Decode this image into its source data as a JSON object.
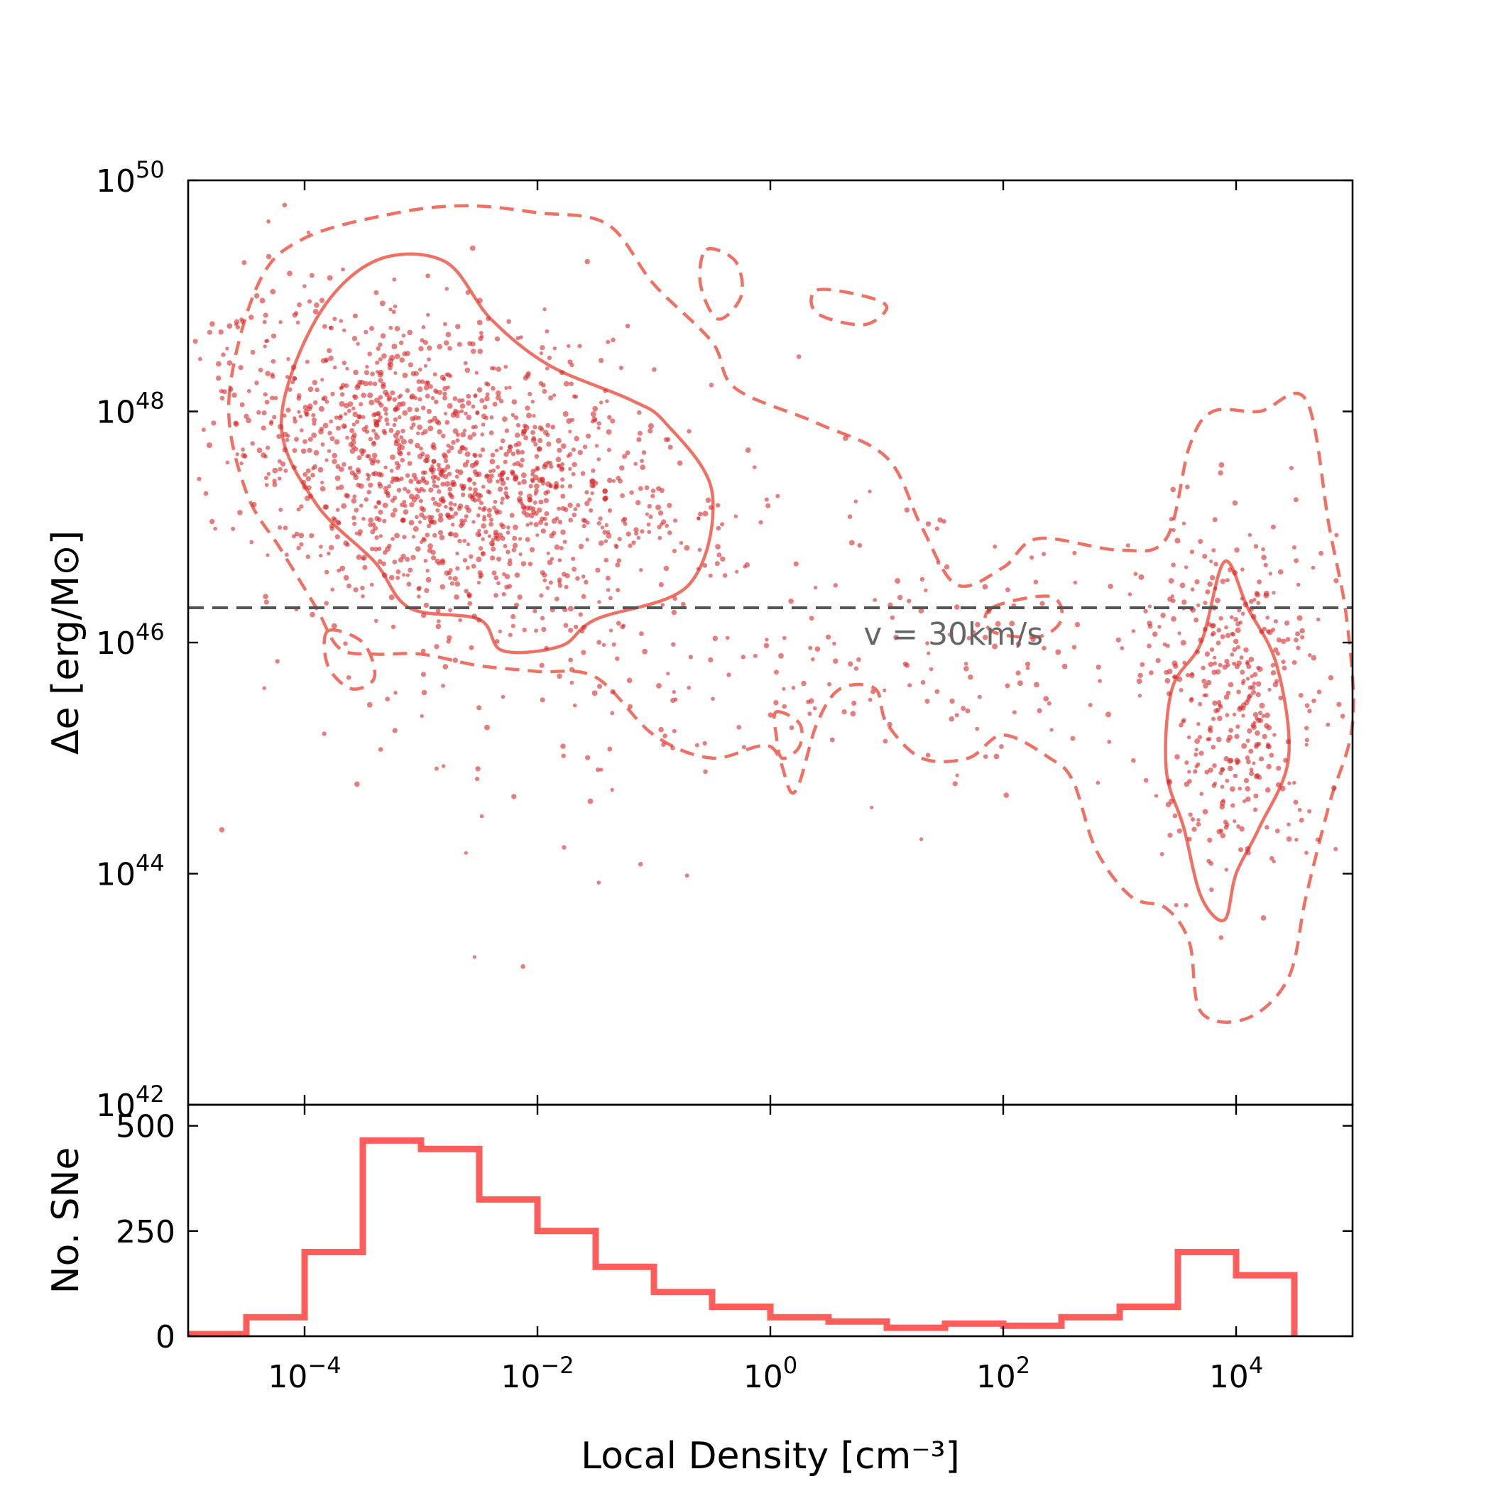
{
  "chart_data": [
    {
      "type": "scatter",
      "xscale": "log",
      "yscale": "log",
      "xlim": [
        1e-05,
        100000.0
      ],
      "ylim": [
        1e+42,
        1e+50
      ],
      "xticks": [
        {
          "value": -4,
          "base": "10",
          "exp": "−4"
        },
        {
          "value": -2,
          "base": "10",
          "exp": "−2"
        },
        {
          "value": 0,
          "base": "10",
          "exp": "0"
        },
        {
          "value": 2,
          "base": "10",
          "exp": "2"
        },
        {
          "value": 4,
          "base": "10",
          "exp": "4"
        }
      ],
      "yticks": [
        {
          "value": 42,
          "base": "10",
          "exp": "42"
        },
        {
          "value": 44,
          "base": "10",
          "exp": "44"
        },
        {
          "value": 46,
          "base": "10",
          "exp": "46"
        },
        {
          "value": 48,
          "base": "10",
          "exp": "48"
        },
        {
          "value": 50,
          "base": "10",
          "exp": "50"
        }
      ],
      "ylabel": "Δe [erg/M⊙]",
      "reference_line": {
        "y": 2e+46,
        "label": "v = 30km/s"
      },
      "point_color": "#d62728",
      "contour_color": "#f07064",
      "clusters": [
        {
          "x_log_mean": -2.9,
          "y_log_mean": 47.55,
          "sigma_x": 0.95,
          "sigma_y": 0.62,
          "tilt": -0.35,
          "count": 1350
        },
        {
          "x_log_mean": 4.0,
          "y_log_mean": 45.5,
          "sigma_x": 0.38,
          "sigma_y": 0.75,
          "tilt": 0.0,
          "count": 380
        },
        {
          "x_log_mean": 1.5,
          "y_log_mean": 45.9,
          "sigma_x": 1.6,
          "sigma_y": 0.55,
          "tilt": 0.0,
          "count": 180
        },
        {
          "x_log_mean": -1.5,
          "y_log_mean": 46.0,
          "sigma_x": 1.5,
          "sigma_y": 1.0,
          "tilt": 0.0,
          "count": 150
        }
      ],
      "outer_contour_log": [
        [
          -4.65,
          48.1
        ],
        [
          -4.4,
          49.1
        ],
        [
          -4.0,
          49.5
        ],
        [
          -3.2,
          49.72
        ],
        [
          -2.6,
          49.78
        ],
        [
          -2.0,
          49.72
        ],
        [
          -1.4,
          49.62
        ],
        [
          -1.0,
          49.1
        ],
        [
          -0.5,
          48.6
        ],
        [
          -0.3,
          48.2
        ],
        [
          0.4,
          47.9
        ],
        [
          1.0,
          47.6
        ],
        [
          1.3,
          47.0
        ],
        [
          1.6,
          46.5
        ],
        [
          2.0,
          46.65
        ],
        [
          2.3,
          46.9
        ],
        [
          3.0,
          46.8
        ],
        [
          3.4,
          46.9
        ],
        [
          3.6,
          47.7
        ],
        [
          3.8,
          48.0
        ],
        [
          4.2,
          48.0
        ],
        [
          4.6,
          48.1
        ],
        [
          4.8,
          47.0
        ],
        [
          4.95,
          46.2
        ],
        [
          5.0,
          45.3
        ],
        [
          4.8,
          44.6
        ],
        [
          4.6,
          43.8
        ],
        [
          4.45,
          43.1
        ],
        [
          4.1,
          42.75
        ],
        [
          3.7,
          42.8
        ],
        [
          3.6,
          43.4
        ],
        [
          3.4,
          43.7
        ],
        [
          3.1,
          43.8
        ],
        [
          2.8,
          44.2
        ],
        [
          2.6,
          44.8
        ],
        [
          2.4,
          45.0
        ],
        [
          2.0,
          45.2
        ],
        [
          1.7,
          45.0
        ],
        [
          1.3,
          45.0
        ],
        [
          1.0,
          45.3
        ],
        [
          0.9,
          45.6
        ],
        [
          0.6,
          45.6
        ],
        [
          0.4,
          45.3
        ],
        [
          0.2,
          44.7
        ],
        [
          0.0,
          45.1
        ],
        [
          -0.5,
          45.0
        ],
        [
          -1.0,
          45.2
        ],
        [
          -1.5,
          45.7
        ],
        [
          -2.0,
          45.75
        ],
        [
          -2.5,
          45.8
        ],
        [
          -3.0,
          45.9
        ],
        [
          -3.4,
          45.9
        ],
        [
          -3.7,
          45.95
        ],
        [
          -3.9,
          46.3
        ],
        [
          -4.2,
          46.8
        ],
        [
          -4.5,
          47.3
        ]
      ],
      "inner_contour_log": [
        [
          [
            -4.2,
            47.9
          ],
          [
            -3.9,
            48.8
          ],
          [
            -3.4,
            49.3
          ],
          [
            -2.8,
            49.3
          ],
          [
            -2.4,
            48.8
          ],
          [
            -1.9,
            48.4
          ],
          [
            -1.2,
            48.1
          ],
          [
            -0.9,
            47.9
          ],
          [
            -0.5,
            47.3
          ],
          [
            -0.7,
            46.5
          ],
          [
            -1.5,
            46.2
          ],
          [
            -1.8,
            45.97
          ],
          [
            -2.3,
            45.93
          ],
          [
            -2.5,
            46.2
          ],
          [
            -3.1,
            46.3
          ],
          [
            -3.4,
            46.7
          ],
          [
            -3.9,
            47.2
          ]
        ],
        [
          [
            3.9,
            46.7
          ],
          [
            4.1,
            46.3
          ],
          [
            4.35,
            45.8
          ],
          [
            4.45,
            45.0
          ],
          [
            4.2,
            44.4
          ],
          [
            4.0,
            44.0
          ],
          [
            3.9,
            43.6
          ],
          [
            3.7,
            43.8
          ],
          [
            3.55,
            44.4
          ],
          [
            3.4,
            44.9
          ],
          [
            3.45,
            45.6
          ],
          [
            3.7,
            46.0
          ]
        ]
      ],
      "outer_islands_log": [
        [
          [
            -0.55,
            49.4
          ],
          [
            -0.3,
            49.3
          ],
          [
            -0.25,
            49.0
          ],
          [
            -0.45,
            48.8
          ],
          [
            -0.6,
            49.1
          ]
        ],
        [
          [
            0.4,
            49.05
          ],
          [
            0.8,
            49.0
          ],
          [
            1.0,
            48.9
          ],
          [
            0.8,
            48.75
          ],
          [
            0.4,
            48.85
          ]
        ],
        [
          [
            1.9,
            46.3
          ],
          [
            2.4,
            46.4
          ],
          [
            2.5,
            46.2
          ],
          [
            2.3,
            46.05
          ],
          [
            1.9,
            46.1
          ]
        ],
        [
          [
            0.05,
            45.4
          ],
          [
            0.25,
            45.3
          ],
          [
            0.25,
            45.1
          ],
          [
            0.1,
            45.0
          ],
          [
            0.05,
            45.2
          ]
        ],
        [
          [
            -3.8,
            46.1
          ],
          [
            -3.5,
            46.0
          ],
          [
            -3.4,
            45.7
          ],
          [
            -3.6,
            45.6
          ],
          [
            -3.8,
            45.8
          ]
        ]
      ]
    },
    {
      "type": "bar",
      "histtype": "step",
      "xscale": "log",
      "xlim": [
        1e-05,
        100000.0
      ],
      "ylim": [
        0,
        550
      ],
      "xlabel": "Local Density [cm⁻³]",
      "ylabel": "No. SNe",
      "yticks": [
        "0",
        "250",
        "500"
      ],
      "line_color": "#ff5c5c",
      "bin_edges_log": [
        -5,
        -4.5,
        -4,
        -3.5,
        -3,
        -2.5,
        -2,
        -1.5,
        -1,
        -0.5,
        0,
        0.5,
        1,
        1.5,
        2,
        2.5,
        3,
        3.5,
        4,
        4.5
      ],
      "values": [
        5,
        45,
        200,
        465,
        445,
        325,
        250,
        165,
        105,
        70,
        45,
        35,
        20,
        30,
        25,
        45,
        70,
        200,
        145
      ]
    }
  ]
}
